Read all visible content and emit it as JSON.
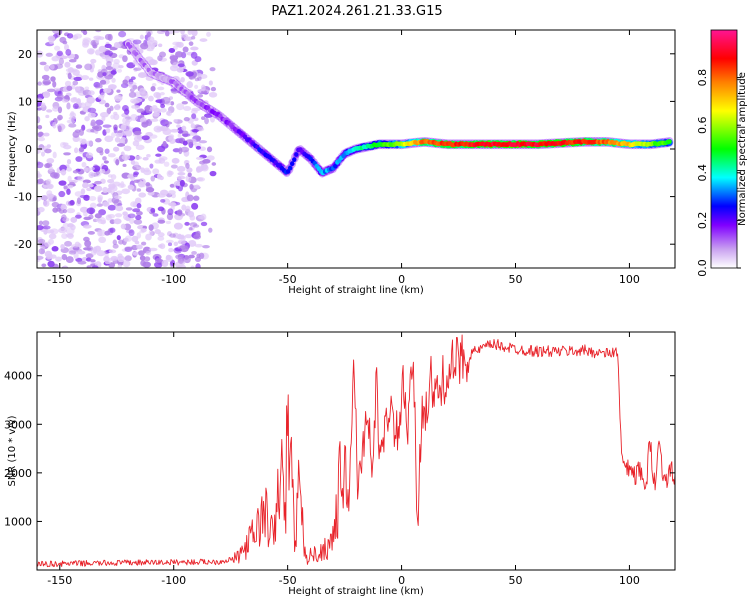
{
  "title": "PAZ1.2024.261.21.33.G15",
  "chart_data": [
    {
      "type": "heatmap",
      "xlabel": "Height of straight line (km)",
      "ylabel": "Frequency (Hz)",
      "xlim": [
        -160,
        120
      ],
      "ylim": [
        -25,
        25
      ],
      "xticks": [
        -150,
        -100,
        -50,
        0,
        50,
        100
      ],
      "yticks": [
        -20,
        -10,
        0,
        10,
        20
      ],
      "colorbar": {
        "label": "Normalized spectral amplitude",
        "range": [
          0,
          1
        ],
        "ticks": [
          "0.0",
          "0.2",
          "0.4",
          "0.6",
          "0.8"
        ],
        "colors": [
          "#ffffff",
          "#c9a0f0",
          "#8000ff",
          "#0000ff",
          "#00ffff",
          "#00ff00",
          "#ffff00",
          "#ff8000",
          "#ff0000",
          "#ff1493"
        ]
      },
      "ridge": {
        "x": [
          -120,
          -110,
          -100,
          -90,
          -80,
          -70,
          -60,
          -50,
          -45,
          -40,
          -35,
          -30,
          -25,
          -20,
          -10,
          0,
          10,
          20,
          40,
          60,
          80,
          90,
          100,
          110,
          118
        ],
        "y": [
          22,
          16,
          14,
          10,
          7,
          3,
          -1,
          -5,
          0,
          -2,
          -5,
          -4,
          -1,
          0,
          1,
          1,
          1.5,
          1,
          1,
          1,
          1.5,
          1.5,
          1,
          1,
          1.5
        ],
        "amplitude": [
          0.1,
          0.1,
          0.1,
          0.15,
          0.15,
          0.2,
          0.25,
          0.25,
          0.2,
          0.25,
          0.35,
          0.3,
          0.35,
          0.4,
          0.5,
          0.6,
          0.8,
          0.85,
          0.9,
          0.9,
          0.85,
          0.8,
          0.7,
          0.55,
          0.5
        ]
      },
      "noise_region_x": [
        -160,
        -80
      ]
    },
    {
      "type": "line",
      "xlabel": "Height of straight line (km)",
      "ylabel": "SNR (10 * v/v)",
      "xlim": [
        -160,
        120
      ],
      "ylim": [
        0,
        4900
      ],
      "xticks": [
        -150,
        -100,
        -50,
        0,
        50,
        100
      ],
      "yticks": [
        1000,
        2000,
        3000,
        4000
      ],
      "line_color": "#e8232a",
      "series": [
        {
          "x": [
            -160,
            -120,
            -80,
            -72,
            -68,
            -64,
            -60,
            -56,
            -53,
            -51,
            -50,
            -47,
            -45,
            -42,
            -40,
            -36,
            -32,
            -29,
            -27,
            -25,
            -23,
            -21,
            -19,
            -17,
            -15,
            -13,
            -11,
            -9,
            -7,
            -5,
            -3,
            -1,
            1,
            3,
            5,
            7,
            9,
            11,
            13,
            15,
            20,
            25,
            30,
            35,
            40,
            45,
            50,
            60,
            70,
            80,
            90,
            95,
            96,
            97,
            99,
            101,
            103,
            105,
            107,
            109,
            111,
            113,
            115,
            118,
            120
          ],
          "y": [
            120,
            150,
            170,
            250,
            500,
            800,
            1200,
            600,
            2200,
            1000,
            3300,
            700,
            1600,
            200,
            300,
            350,
            500,
            900,
            1800,
            2300,
            1200,
            4550,
            1500,
            2500,
            3500,
            1900,
            3800,
            2100,
            2900,
            3600,
            2500,
            3100,
            3800,
            2800,
            4550,
            900,
            3500,
            3300,
            3900,
            3500,
            4100,
            4300,
            4450,
            4550,
            4650,
            4600,
            4550,
            4500,
            4500,
            4520,
            4450,
            4500,
            2800,
            2200,
            2000,
            2100,
            1900,
            2100,
            1500,
            2700,
            1800,
            2600,
            1900,
            2000,
            1950
          ]
        }
      ]
    }
  ]
}
